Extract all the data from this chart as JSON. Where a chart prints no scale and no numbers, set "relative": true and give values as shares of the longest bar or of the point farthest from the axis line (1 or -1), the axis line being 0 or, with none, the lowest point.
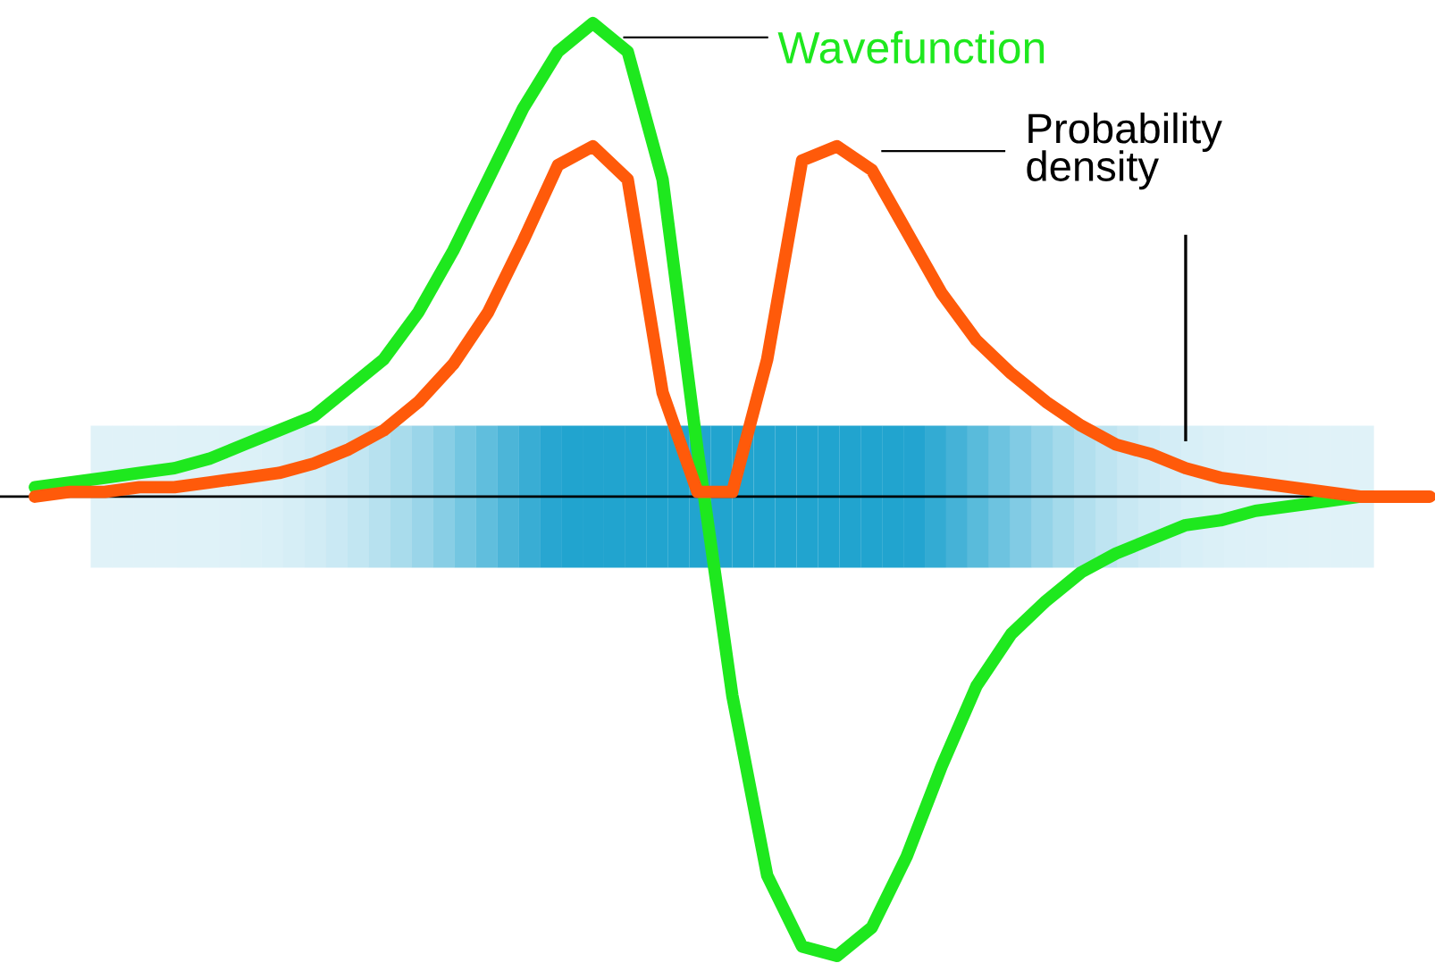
{
  "chart_data": {
    "type": "line",
    "relative": true,
    "legend": false,
    "marker": "none",
    "line_style": "solid",
    "categories": [
      null,
      null,
      null,
      null,
      null,
      null,
      null,
      null,
      null,
      null,
      null,
      null,
      null,
      null,
      null,
      null,
      null,
      null,
      null,
      null,
      null,
      null,
      null,
      null,
      null,
      null,
      null,
      null,
      null,
      null,
      null,
      null,
      null,
      null,
      null,
      null,
      null,
      null,
      null,
      null,
      null
    ],
    "series": [
      {
        "name": "Wavefunction",
        "color": "#1ee81e",
        "values": [
          0.02,
          0.03,
          0.04,
          0.05,
          0.06,
          0.08,
          0.11,
          0.14,
          0.17,
          0.23,
          0.29,
          0.39,
          0.52,
          0.67,
          0.82,
          0.94,
          1.0,
          0.94,
          0.67,
          0.1,
          -0.42,
          -0.8,
          -0.95,
          -0.97,
          -0.91,
          -0.76,
          -0.57,
          -0.4,
          -0.29,
          -0.22,
          -0.16,
          -0.12,
          -0.09,
          -0.06,
          -0.05,
          -0.03,
          -0.02,
          -0.01,
          0.0,
          null,
          null
        ]
      },
      {
        "name": "Probability density",
        "color": "#ff5a0a",
        "values": [
          0.0,
          0.01,
          0.01,
          0.02,
          0.02,
          0.03,
          0.04,
          0.05,
          0.07,
          0.1,
          0.14,
          0.2,
          0.28,
          0.39,
          0.54,
          0.7,
          0.74,
          0.67,
          0.22,
          0.01,
          0.01,
          0.29,
          0.71,
          0.74,
          0.69,
          0.56,
          0.43,
          0.33,
          0.26,
          0.2,
          0.15,
          0.11,
          0.09,
          0.06,
          0.04,
          0.03,
          0.02,
          0.01,
          0.0,
          0.0,
          0.0
        ]
      }
    ]
  }
}
